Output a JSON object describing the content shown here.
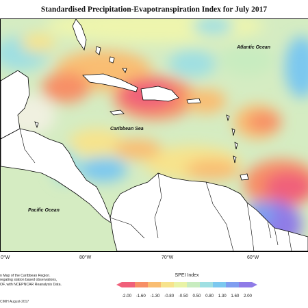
{
  "title": "Standardised Precipitation-Evapotranspiration Index for July 2017",
  "labels": {
    "atlantic": "Atlantic Ocean",
    "caribbean": "Caribbean Sea",
    "pacific": "Pacific Ocean"
  },
  "longitudes": [
    "0°W",
    "80°W",
    "70°W",
    "60°W"
  ],
  "description": {
    "line1": "n Map of the Caribbean Region.",
    "line2": "regating station based observations,",
    "line3": "OF, with NCEPNCAR Reanalysis Data."
  },
  "credit": "CIMH August-2017",
  "legend": {
    "title": "SPEI Index",
    "ticks": [
      "-2.00",
      "-1.60",
      "-1.30",
      "-0.80",
      "-0.50",
      "0.50",
      "0.80",
      "1.30",
      "1.60",
      "2.00"
    ],
    "colors": [
      "#f0607a",
      "#f78f66",
      "#f9bd72",
      "#f7e38c",
      "#e9f3a6",
      "#c8ecc0",
      "#9fdfe2",
      "#7cc8ef",
      "#7f9ef0",
      "#8f7be7"
    ]
  }
}
